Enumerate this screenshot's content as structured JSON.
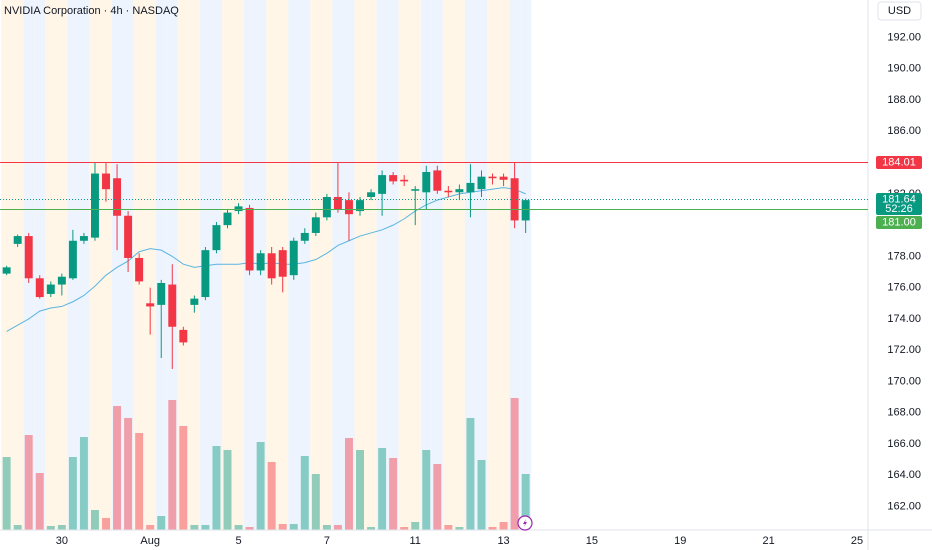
{
  "chart_data": {
    "type": "candlestick",
    "title": "NVIDIA Corporation · 4h · NASDAQ",
    "currency": "USD",
    "ylim": [
      160.5,
      194.4
    ],
    "xlim": [
      -0.6,
      78
    ],
    "yticks": [
      {
        "value": 162,
        "label": "162.00"
      },
      {
        "value": 164,
        "label": "164.00"
      },
      {
        "value": 166,
        "label": "166.00"
      },
      {
        "value": 168,
        "label": "168.00"
      },
      {
        "value": 170,
        "label": "170.00"
      },
      {
        "value": 172,
        "label": "172.00"
      },
      {
        "value": 174,
        "label": "174.00"
      },
      {
        "value": 176,
        "label": "176.00"
      },
      {
        "value": 178,
        "label": "178.00"
      },
      {
        "value": 180,
        "label": "180.00"
      },
      {
        "value": 182,
        "label": "182.00"
      },
      {
        "value": 184,
        "label": "184.00"
      },
      {
        "value": 186,
        "label": "186.00"
      },
      {
        "value": 188,
        "label": "188.00"
      },
      {
        "value": 190,
        "label": "190.00"
      },
      {
        "value": 192,
        "label": "192.00"
      }
    ],
    "xticks": [
      {
        "value": 5,
        "label": "30"
      },
      {
        "value": 13,
        "label": "Aug"
      },
      {
        "value": 21,
        "label": "5"
      },
      {
        "value": 29,
        "label": "7"
      },
      {
        "value": 37,
        "label": "11"
      },
      {
        "value": 45,
        "label": "13"
      },
      {
        "value": 53,
        "label": "15"
      },
      {
        "value": 61,
        "label": "19"
      },
      {
        "value": 69,
        "label": "21"
      },
      {
        "value": 77,
        "label": "25"
      }
    ],
    "up_color": "#089981",
    "down_color": "#f23645",
    "open": [
      176.9,
      178.8,
      179.3,
      176.6,
      175.6,
      176.2,
      176.6,
      179.0,
      179.2,
      183.3,
      183.0,
      180.6,
      177.9,
      175.0,
      174.9,
      176.2,
      173.3,
      174.9,
      175.4,
      178.4,
      180.0,
      180.9,
      181.1,
      177.1,
      178.2,
      178.4,
      176.8,
      179.0,
      179.5,
      180.5,
      181.8,
      181.6,
      180.9,
      181.8,
      182.0,
      183.2,
      182.9,
      182.2,
      182.1,
      183.5,
      182.2,
      182.1,
      182.1,
      182.3,
      183.1,
      183.1,
      183.0,
      180.3
    ],
    "high": [
      177.4,
      179.4,
      179.5,
      176.8,
      176.4,
      176.9,
      179.7,
      179.5,
      184.0,
      184.0,
      183.9,
      180.9,
      178.2,
      176.0,
      176.5,
      177.5,
      173.5,
      175.5,
      178.6,
      180.2,
      181.0,
      181.4,
      181.3,
      178.4,
      178.6,
      178.6,
      179.2,
      179.8,
      180.8,
      182.0,
      184.0,
      182.1,
      181.8,
      182.3,
      183.5,
      183.4,
      183.2,
      182.5,
      183.8,
      183.8,
      182.5,
      182.6,
      183.9,
      183.5,
      183.3,
      183.3,
      184.0,
      181.7
    ],
    "low": [
      176.8,
      178.6,
      176.3,
      175.3,
      175.4,
      175.5,
      176.5,
      178.8,
      179.0,
      181.5,
      178.4,
      177.0,
      176.2,
      173.0,
      171.5,
      170.8,
      172.3,
      174.4,
      175.2,
      178.2,
      179.8,
      180.7,
      176.8,
      176.8,
      176.2,
      175.7,
      176.5,
      178.8,
      179.3,
      180.3,
      180.8,
      179.0,
      180.6,
      181.6,
      180.6,
      182.6,
      182.5,
      180.0,
      181.0,
      182.0,
      181.8,
      181.6,
      180.5,
      181.8,
      182.6,
      182.5,
      179.8,
      179.5
    ],
    "close": [
      177.3,
      179.3,
      176.6,
      175.4,
      176.2,
      176.7,
      179.0,
      179.3,
      183.3,
      182.3,
      180.6,
      177.9,
      176.4,
      174.8,
      176.3,
      173.5,
      172.5,
      175.3,
      178.4,
      180.0,
      180.8,
      181.2,
      177.1,
      178.2,
      176.6,
      176.7,
      179.0,
      179.5,
      180.5,
      181.8,
      181.0,
      180.7,
      181.6,
      182.1,
      183.2,
      182.8,
      182.8,
      182.3,
      183.4,
      182.2,
      182.1,
      182.3,
      182.7,
      183.1,
      183.0,
      182.9,
      180.3,
      181.6
    ],
    "volume": [
      73,
      5,
      95,
      57,
      4,
      5,
      73,
      93,
      20,
      12,
      124,
      112,
      97,
      5,
      14,
      130,
      104,
      5,
      5,
      84,
      80,
      5,
      3,
      88,
      68,
      6,
      6,
      74,
      56,
      5,
      5,
      92,
      80,
      3,
      82,
      72,
      3,
      8,
      80,
      66,
      5,
      3,
      112,
      70,
      3,
      8,
      132,
      56
    ],
    "ma": [
      173.2,
      173.6,
      174.0,
      174.5,
      174.7,
      174.8,
      175.1,
      175.5,
      176.1,
      176.8,
      177.3,
      177.7,
      178.3,
      178.5,
      178.4,
      178.0,
      177.5,
      177.3,
      177.4,
      177.5,
      177.5,
      177.5,
      177.6,
      177.5,
      177.6,
      177.5,
      177.5,
      177.6,
      177.8,
      178.2,
      178.7,
      179.0,
      179.3,
      179.5,
      179.7,
      180.0,
      180.4,
      180.9,
      181.3,
      181.6,
      181.8,
      182.0,
      182.1,
      182.2,
      182.3,
      182.4,
      182.3,
      182.0
    ],
    "ma_color": "#5ab4e0",
    "price_lines": [
      {
        "value": 184.01,
        "color": "#f23645"
      },
      {
        "value": 181.64,
        "color": "#089981",
        "countdown": "52:26"
      },
      {
        "value": 181,
        "label": "181.00",
        "color": "#4caf50"
      }
    ]
  }
}
